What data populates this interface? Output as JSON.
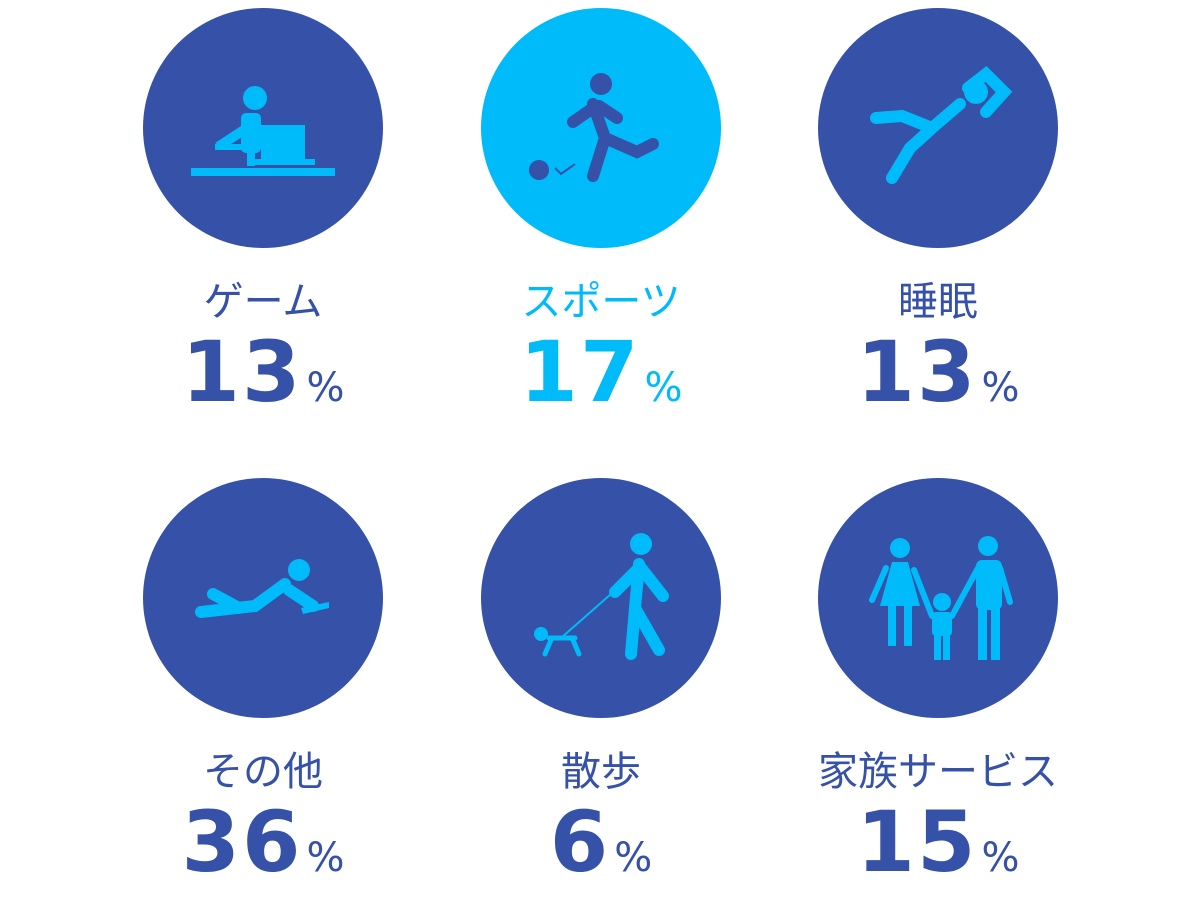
{
  "colors": {
    "dark": "#3651a8",
    "highlight": "#00bbf9"
  },
  "chart_data": {
    "type": "table",
    "unit": "%",
    "items": [
      {
        "label": "ゲーム",
        "value": 13,
        "icon": "person-at-desk-icon",
        "highlight": false
      },
      {
        "label": "スポーツ",
        "value": 17,
        "icon": "person-kicking-ball-icon",
        "highlight": true
      },
      {
        "label": "睡眠",
        "value": 13,
        "icon": "person-reclining-icon",
        "highlight": false
      },
      {
        "label": "その他",
        "value": 36,
        "icon": "person-lying-reading-icon",
        "highlight": false
      },
      {
        "label": "散歩",
        "value": 6,
        "icon": "person-walking-dog-icon",
        "highlight": false
      },
      {
        "label": "家族サービス",
        "value": 15,
        "icon": "family-icon",
        "highlight": false
      }
    ]
  }
}
